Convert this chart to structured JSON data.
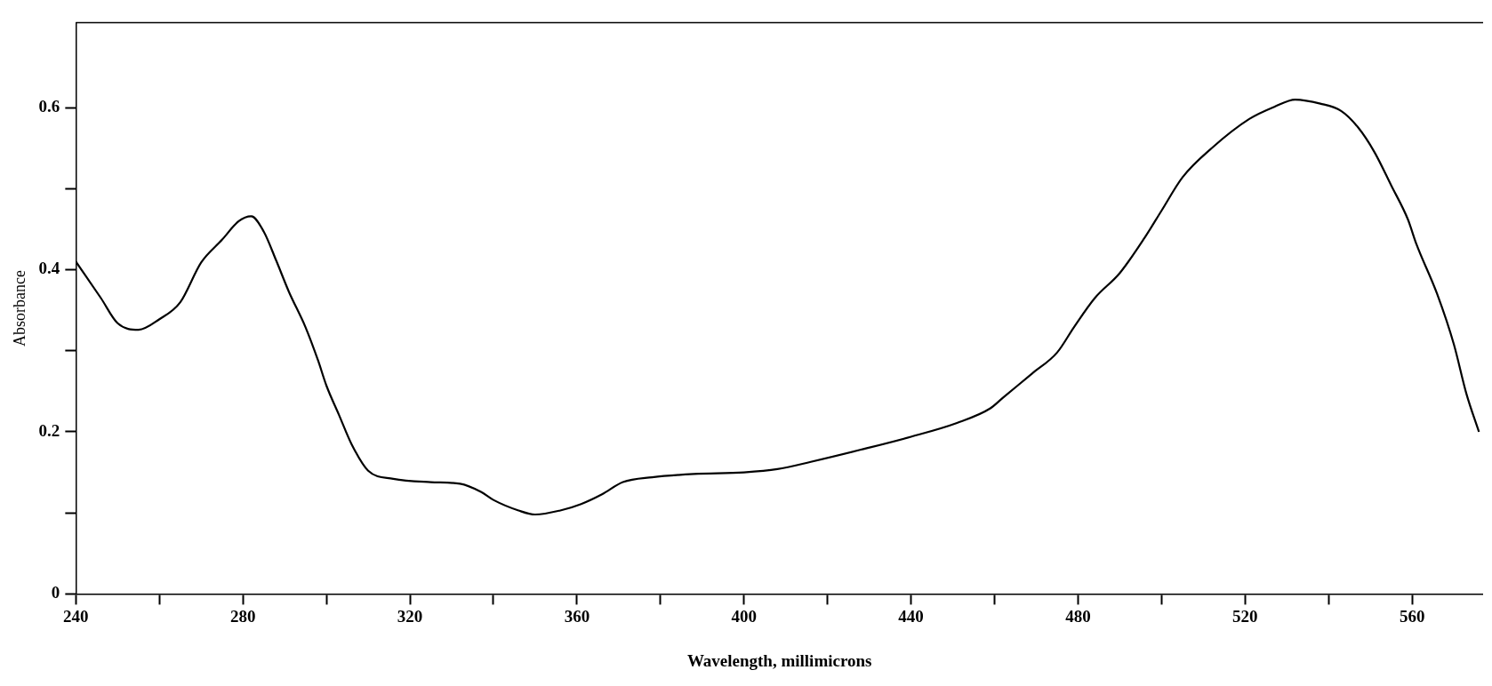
{
  "chart_data": {
    "type": "line",
    "xlabel": "Wavelength, millimicrons",
    "ylabel": "Absorbance",
    "x": [
      240,
      246,
      250,
      255,
      260,
      265,
      270,
      275,
      279,
      282,
      285,
      288,
      291,
      295,
      298,
      300,
      303,
      306,
      310,
      316,
      325,
      332,
      337,
      340,
      346,
      350,
      356,
      361,
      366,
      371,
      378,
      388,
      400,
      408,
      416,
      428,
      440,
      451,
      459,
      462,
      469,
      475,
      479,
      484,
      490,
      496,
      500,
      505,
      512,
      521,
      527,
      532,
      538,
      543,
      547,
      551,
      555,
      559,
      561,
      566,
      570,
      573,
      576
    ],
    "series": [
      {
        "color": "#000000",
        "values": [
          0.41,
          0.365,
          0.334,
          0.326,
          0.339,
          0.36,
          0.409,
          0.437,
          0.46,
          0.466,
          0.447,
          0.411,
          0.373,
          0.329,
          0.288,
          0.257,
          0.221,
          0.185,
          0.152,
          0.142,
          0.138,
          0.136,
          0.126,
          0.116,
          0.103,
          0.098,
          0.103,
          0.111,
          0.123,
          0.138,
          0.144,
          0.148,
          0.15,
          0.154,
          0.163,
          0.178,
          0.194,
          0.211,
          0.229,
          0.242,
          0.272,
          0.298,
          0.329,
          0.365,
          0.396,
          0.44,
          0.473,
          0.514,
          0.55,
          0.586,
          0.601,
          0.61,
          0.605,
          0.596,
          0.576,
          0.545,
          0.504,
          0.462,
          0.432,
          0.37,
          0.308,
          0.247,
          0.2
        ]
      }
    ],
    "xlim": [
      240,
      577
    ],
    "ylim": [
      0,
      0.705
    ],
    "xticks": [
      240,
      {
        "value": 260,
        "label": null
      },
      280,
      {
        "value": 300,
        "label": null
      },
      320,
      {
        "value": 340,
        "label": null
      },
      360,
      {
        "value": 380,
        "label": null
      },
      400,
      {
        "value": 420,
        "label": null
      },
      440,
      {
        "value": 460,
        "label": null
      },
      480,
      {
        "value": 500,
        "label": null
      },
      520,
      {
        "value": 540,
        "label": null
      },
      560
    ],
    "yticks": [
      0,
      {
        "value": 0.1,
        "label": null
      },
      0.2,
      {
        "value": 0.3,
        "label": null
      },
      0.4,
      {
        "value": 0.5,
        "label": null
      },
      0.6
    ],
    "grid": false,
    "legend": false,
    "marker": "none",
    "line_style": "solid"
  }
}
